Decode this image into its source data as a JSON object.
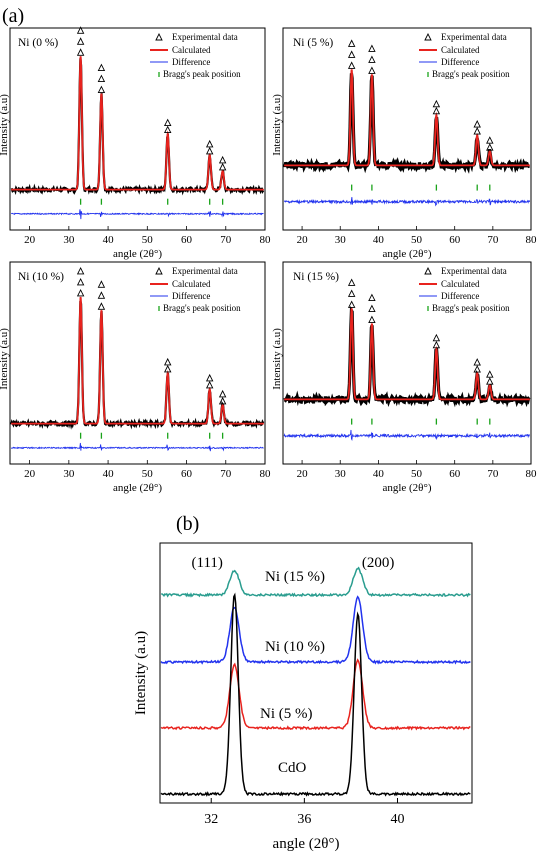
{
  "figure_labels": {
    "a": "(a)",
    "b": "(b)"
  },
  "legend": {
    "experimental": "Experimental data",
    "calculated": "Calculated",
    "difference": "Difference",
    "bragg": "Bragg's peak position"
  },
  "colors": {
    "calculated": "#e8231e",
    "difference": "#2233ee",
    "bragg": "#1aa31a"
  },
  "chart_data": [
    {
      "type": "line",
      "title": "Ni (0 %)",
      "xlabel": "angle (2θ°)",
      "ylabel": "Intensity (a.u)",
      "xlim": [
        15,
        80
      ],
      "xticks": [
        "20",
        "30",
        "40",
        "50",
        "60",
        "70",
        "80"
      ],
      "peaks_x": [
        33.0,
        38.3,
        55.2,
        65.9,
        69.2
      ],
      "peak_heights": [
        1.0,
        0.72,
        0.42,
        0.26,
        0.14
      ],
      "series": [
        {
          "name": "Experimental data",
          "values": "markers at peak tops"
        },
        {
          "name": "Calculated",
          "values": "fit profile"
        },
        {
          "name": "Difference",
          "values": "residual"
        },
        {
          "name": "Bragg's peak position",
          "values": [
            33.0,
            38.3,
            55.2,
            65.9,
            69.2
          ]
        }
      ]
    },
    {
      "type": "line",
      "title": "Ni (5 %)",
      "xlabel": "angle (2θ°)",
      "ylabel": "Intensity (a.u)",
      "xlim": [
        15,
        80
      ],
      "xticks": [
        "20",
        "30",
        "40",
        "50",
        "60",
        "70",
        "80"
      ],
      "peaks_x": [
        33.0,
        38.3,
        55.2,
        65.9,
        69.2
      ],
      "peak_heights": [
        0.95,
        0.9,
        0.5,
        0.3,
        0.14
      ],
      "series": [
        {
          "name": "Experimental data",
          "values": "markers at peak tops"
        },
        {
          "name": "Calculated",
          "values": "fit profile"
        },
        {
          "name": "Difference",
          "values": "residual"
        },
        {
          "name": "Bragg's peak position",
          "values": [
            33.0,
            38.3,
            55.2,
            65.9,
            69.2
          ]
        }
      ]
    },
    {
      "type": "line",
      "title": "Ni (10 %)",
      "xlabel": "angle (2θ°)",
      "ylabel": "Intensity (a.u)",
      "xlim": [
        15,
        80
      ],
      "xticks": [
        "20",
        "30",
        "40",
        "50",
        "60",
        "70",
        "80"
      ],
      "peaks_x": [
        33.0,
        38.3,
        55.2,
        65.9,
        69.2
      ],
      "peak_heights": [
        0.95,
        0.85,
        0.38,
        0.26,
        0.14
      ],
      "series": [
        {
          "name": "Experimental data",
          "values": "markers at peak tops"
        },
        {
          "name": "Calculated",
          "values": "fit profile"
        },
        {
          "name": "Difference",
          "values": "residual"
        },
        {
          "name": "Bragg's peak position",
          "values": [
            33.0,
            38.3,
            55.2,
            65.9,
            69.2
          ]
        }
      ]
    },
    {
      "type": "line",
      "title": "Ni (15 %)",
      "xlabel": "angle (2θ°)",
      "ylabel": "Intensity (a.u)",
      "xlim": [
        15,
        80
      ],
      "xticks": [
        "20",
        "30",
        "40",
        "50",
        "60",
        "70",
        "80"
      ],
      "peaks_x": [
        33.0,
        38.3,
        55.2,
        65.9,
        69.2
      ],
      "peak_heights": [
        0.9,
        0.75,
        0.5,
        0.26,
        0.14
      ],
      "series": [
        {
          "name": "Experimental data",
          "values": "markers at peak tops"
        },
        {
          "name": "Calculated",
          "values": "fit profile"
        },
        {
          "name": "Difference",
          "values": "residual"
        },
        {
          "name": "Bragg's peak position",
          "values": [
            33.0,
            38.3,
            55.2,
            65.9,
            69.2
          ]
        }
      ]
    },
    {
      "type": "line",
      "title": "",
      "xlabel": "angle (2θ°)",
      "ylabel": "Intensity (a.u)",
      "xlim": [
        29.8,
        43.2
      ],
      "xticks": [
        "32",
        "36",
        "40"
      ],
      "xtick_values": [
        32,
        36,
        40
      ],
      "peaks_x": [
        33.0,
        38.3
      ],
      "peak_labels": [
        "(111)",
        "(200)"
      ],
      "series": [
        {
          "name": "Ni (15 %)",
          "color": "#2a9d8f",
          "peak_heights": [
            0.35,
            0.38
          ]
        },
        {
          "name": "Ni (10 %)",
          "color": "#2233ee",
          "peak_heights": [
            0.55,
            0.65
          ]
        },
        {
          "name": "Ni (5 %)",
          "color": "#e8231e",
          "peak_heights": [
            0.58,
            0.62
          ]
        },
        {
          "name": "CdO",
          "color": "#000000",
          "peak_heights": [
            1.0,
            0.9
          ]
        }
      ]
    }
  ]
}
